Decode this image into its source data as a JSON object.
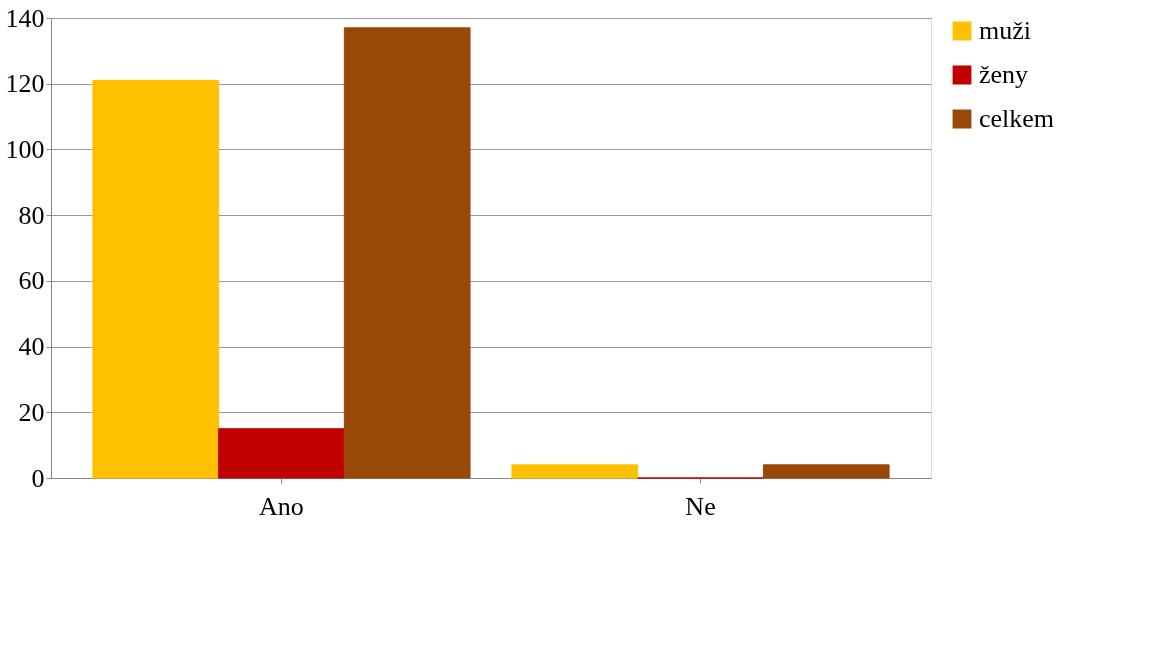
{
  "chart_data": {
    "type": "bar",
    "categories": [
      "Ano",
      "Ne"
    ],
    "series": [
      {
        "name": "muži",
        "color": "#ffc000",
        "values": [
          121,
          4
        ]
      },
      {
        "name": "ženy",
        "color": "#c00000",
        "values": [
          15,
          0
        ]
      },
      {
        "name": "celkem",
        "color": "#984807",
        "values": [
          137,
          4
        ]
      }
    ],
    "ylim": [
      0,
      140
    ],
    "yticks": [
      0,
      20,
      40,
      60,
      80,
      100,
      120,
      140
    ],
    "grid": "y",
    "legend": "right"
  }
}
